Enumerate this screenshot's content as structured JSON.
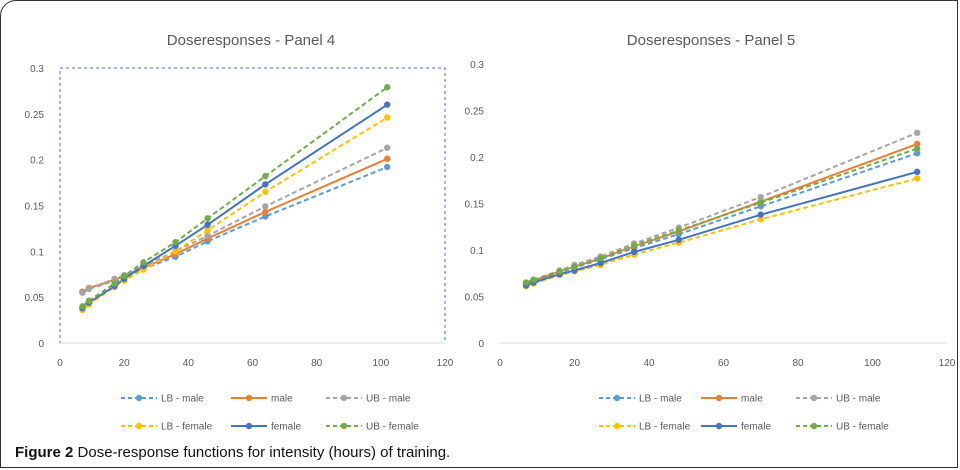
{
  "figure": {
    "label": "Figure 2",
    "caption": "Dose-response functions for intensity (hours) of training."
  },
  "colors": {
    "LB - male": "#5b9bd5",
    "male": "#ed7d31",
    "UB - male": "#a5a5a5",
    "LB - female": "#ffc000",
    "female": "#4472c4",
    "UB - female": "#70ad47"
  },
  "chart_data": [
    {
      "type": "line",
      "title": "Doseresponses - Panel 4",
      "xlim": [
        0,
        120
      ],
      "ylim": [
        0,
        0.3
      ],
      "xticks": [
        0,
        20,
        40,
        60,
        80,
        100,
        120
      ],
      "yticks": [
        0,
        0.05,
        0.1,
        0.15,
        0.2,
        0.25,
        0.3
      ],
      "ytick_labels": [
        "0",
        "0.05",
        "0.1",
        "0.15",
        "0.2",
        "0.25",
        "0.3"
      ],
      "grid": false,
      "legend_position": "bottom",
      "x": [
        7,
        9,
        17,
        20,
        26,
        36,
        46,
        64,
        102
      ],
      "series": [
        {
          "name": "LB - male",
          "dashed": true,
          "values": [
            0.055,
            0.059,
            0.068,
            0.072,
            0.081,
            0.094,
            0.111,
            0.138,
            0.192
          ]
        },
        {
          "name": "male",
          "dashed": false,
          "values": [
            0.056,
            0.06,
            0.069,
            0.073,
            0.082,
            0.097,
            0.114,
            0.143,
            0.201
          ]
        },
        {
          "name": "UB - male",
          "dashed": true,
          "values": [
            0.055,
            0.059,
            0.07,
            0.074,
            0.084,
            0.1,
            0.117,
            0.149,
            0.213
          ]
        },
        {
          "name": "LB - female",
          "dashed": true,
          "values": [
            0.036,
            0.042,
            0.061,
            0.068,
            0.08,
            0.1,
            0.123,
            0.165,
            0.246
          ]
        },
        {
          "name": "female",
          "dashed": false,
          "values": [
            0.038,
            0.044,
            0.062,
            0.07,
            0.084,
            0.106,
            0.129,
            0.173,
            0.26
          ]
        },
        {
          "name": "UB - female",
          "dashed": true,
          "values": [
            0.04,
            0.046,
            0.065,
            0.073,
            0.088,
            0.11,
            0.136,
            0.182,
            0.279
          ]
        }
      ]
    },
    {
      "type": "line",
      "title": "Doseresponses - Panel 5",
      "xlim": [
        0,
        120
      ],
      "ylim": [
        0,
        0.3
      ],
      "xticks": [
        0,
        20,
        40,
        60,
        80,
        100,
        120
      ],
      "yticks": [
        0,
        0.05,
        0.1,
        0.15,
        0.2,
        0.25,
        0.3
      ],
      "ytick_labels": [
        "0",
        "0.05",
        "0.1",
        "0.15",
        "0.2",
        "0.25",
        "0.3"
      ],
      "grid": false,
      "legend_position": "bottom",
      "x": [
        7,
        9,
        16,
        20,
        27,
        36,
        48,
        70,
        112
      ],
      "series": [
        {
          "name": "LB - male",
          "dashed": true,
          "values": [
            0.064,
            0.067,
            0.076,
            0.081,
            0.09,
            0.102,
            0.117,
            0.147,
            0.204
          ]
        },
        {
          "name": "male",
          "dashed": false,
          "values": [
            0.064,
            0.067,
            0.077,
            0.082,
            0.091,
            0.104,
            0.12,
            0.152,
            0.214
          ]
        },
        {
          "name": "UB - male",
          "dashed": true,
          "values": [
            0.065,
            0.068,
            0.078,
            0.084,
            0.093,
            0.107,
            0.124,
            0.157,
            0.226
          ]
        },
        {
          "name": "LB - female",
          "dashed": true,
          "values": [
            0.061,
            0.064,
            0.073,
            0.077,
            0.084,
            0.095,
            0.108,
            0.133,
            0.177
          ]
        },
        {
          "name": "female",
          "dashed": false,
          "values": [
            0.062,
            0.065,
            0.074,
            0.078,
            0.086,
            0.098,
            0.111,
            0.138,
            0.184
          ]
        },
        {
          "name": "UB - female",
          "dashed": true,
          "values": [
            0.065,
            0.068,
            0.077,
            0.082,
            0.091,
            0.105,
            0.121,
            0.151,
            0.209
          ]
        }
      ]
    }
  ]
}
